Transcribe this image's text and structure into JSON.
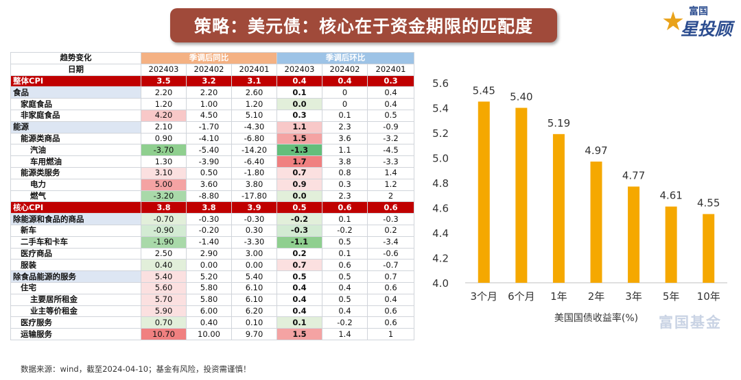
{
  "title": "策略：美元债：核心在于资金期限的匹配度",
  "brand": {
    "line1": "富国",
    "line2": "星投顾"
  },
  "watermark": "富国基金",
  "footer": "数据来源：wind，截至2024-04-10；基金有风险，投资需谨慎！",
  "colors": {
    "accent": "#f5a800",
    "banner": "#a04a3a",
    "red_row": "#c00000"
  },
  "table": {
    "header_trend": "趋势变化",
    "header_date": "日期",
    "group_yoy": "季调后同比",
    "group_mom": "季调后环比",
    "dates": [
      "202403",
      "202402",
      "202401",
      "202403",
      "202402",
      "202401"
    ],
    "rows": [
      {
        "label": "整体CPI",
        "level": 0,
        "kind": "red",
        "vals": [
          "3.5",
          "3.2",
          "3.1",
          "0.4",
          "0.4",
          "0.3"
        ],
        "colors": [
          "",
          "",
          "",
          "",
          "",
          ""
        ]
      },
      {
        "label": "食品",
        "level": 0,
        "kind": "cat",
        "vals": [
          "2.20",
          "2.20",
          "2.60",
          "0.1",
          "0",
          "0.4"
        ],
        "colors": [
          "",
          "",
          "",
          "",
          "",
          ""
        ]
      },
      {
        "label": "家庭食品",
        "level": 1,
        "kind": "",
        "vals": [
          "1.20",
          "1.00",
          "1.20",
          "0.0",
          "0",
          "0.4"
        ],
        "colors": [
          "",
          "",
          "",
          "#e2efda",
          "",
          ""
        ]
      },
      {
        "label": "非家庭食品",
        "level": 1,
        "kind": "",
        "vals": [
          "4.20",
          "4.50",
          "5.10",
          "0.3",
          "0.1",
          "0.5"
        ],
        "colors": [
          "#f8c8c8",
          "",
          "",
          "",
          "",
          ""
        ]
      },
      {
        "label": "能源",
        "level": 0,
        "kind": "cat",
        "vals": [
          "2.10",
          "-1.70",
          "-4.30",
          "1.1",
          "2.3",
          "-0.9"
        ],
        "colors": [
          "",
          "",
          "",
          "#f8c8c8",
          "",
          ""
        ]
      },
      {
        "label": "能源类商品",
        "level": 1,
        "kind": "",
        "vals": [
          "0.90",
          "-4.10",
          "-6.80",
          "1.5",
          "3.6",
          "-3.2"
        ],
        "colors": [
          "",
          "",
          "",
          "#f4a3a3",
          "",
          ""
        ]
      },
      {
        "label": "汽油",
        "level": 2,
        "kind": "",
        "vals": [
          "-3.70",
          "-5.40",
          "-14.20",
          "-1.3",
          "1.1",
          "-4.5"
        ],
        "colors": [
          "#8fcf8f",
          "",
          "",
          "#63be7b",
          "",
          ""
        ]
      },
      {
        "label": "车用燃油",
        "level": 2,
        "kind": "",
        "vals": [
          "1.30",
          "-3.90",
          "-6.40",
          "1.7",
          "3.8",
          "-3.3"
        ],
        "colors": [
          "",
          "",
          "",
          "#f08080",
          "",
          ""
        ]
      },
      {
        "label": "能源类服务",
        "level": 1,
        "kind": "",
        "vals": [
          "3.10",
          "0.50",
          "-1.80",
          "0.7",
          "0.8",
          "1.4"
        ],
        "colors": [
          "#fbe0e0",
          "",
          "",
          "#fbe0e0",
          "",
          ""
        ]
      },
      {
        "label": "电力",
        "level": 2,
        "kind": "",
        "vals": [
          "5.00",
          "3.60",
          "3.80",
          "0.9",
          "0.3",
          "1.2"
        ],
        "colors": [
          "#f4a3a3",
          "",
          "",
          "#fbe0e0",
          "",
          ""
        ]
      },
      {
        "label": "燃气",
        "level": 2,
        "kind": "",
        "vals": [
          "-3.20",
          "-8.80",
          "-17.80",
          "0.0",
          "2.3",
          "2"
        ],
        "colors": [
          "#a9d9a9",
          "",
          "",
          "#e2efda",
          "",
          ""
        ]
      },
      {
        "label": "核心CPI",
        "level": 0,
        "kind": "red",
        "vals": [
          "3.8",
          "3.8",
          "3.9",
          "0.5",
          "0.6",
          "0.6"
        ],
        "colors": [
          "",
          "",
          "",
          "",
          "",
          ""
        ]
      },
      {
        "label": "除能源和食品的商品",
        "level": 0,
        "kind": "cat",
        "vals": [
          "-0.70",
          "-0.30",
          "-0.30",
          "-0.2",
          "0.1",
          "-0.3"
        ],
        "colors": [
          "#e2efda",
          "",
          "",
          "#e2efda",
          "",
          ""
        ]
      },
      {
        "label": "新车",
        "level": 1,
        "kind": "",
        "vals": [
          "-0.90",
          "-0.20",
          "0.30",
          "-0.3",
          "-0.2",
          "0.2"
        ],
        "colors": [
          "#d3ebd3",
          "",
          "",
          "#d3ebd3",
          "",
          ""
        ]
      },
      {
        "label": "二手车和卡车",
        "level": 1,
        "kind": "",
        "vals": [
          "-1.90",
          "-1.40",
          "-3.30",
          "-1.1",
          "0.5",
          "-3.4"
        ],
        "colors": [
          "#a9d9a9",
          "",
          "",
          "#8fcf8f",
          "",
          ""
        ]
      },
      {
        "label": "医疗商品",
        "level": 1,
        "kind": "",
        "vals": [
          "2.50",
          "2.90",
          "3.00",
          "0.2",
          "0.1",
          "-0.6"
        ],
        "colors": [
          "",
          "",
          "",
          "",
          "",
          ""
        ]
      },
      {
        "label": "服装",
        "level": 1,
        "kind": "",
        "vals": [
          "0.40",
          "0.00",
          "0.00",
          "0.7",
          "0.6",
          "-0.7"
        ],
        "colors": [
          "#e2efda",
          "",
          "",
          "#fbe0e0",
          "",
          ""
        ]
      },
      {
        "label": "除食品能源的服务",
        "level": 0,
        "kind": "cat",
        "vals": [
          "5.40",
          "5.20",
          "5.40",
          "0.5",
          "0.5",
          "0.7"
        ],
        "colors": [
          "#fbe0e0",
          "",
          "",
          "",
          "",
          ""
        ]
      },
      {
        "label": "住宅",
        "level": 1,
        "kind": "",
        "vals": [
          "5.60",
          "5.80",
          "6.10",
          "0.4",
          "0.4",
          "0.6"
        ],
        "colors": [
          "#fbe0e0",
          "",
          "",
          "",
          "",
          ""
        ]
      },
      {
        "label": "主要居所租金",
        "level": 2,
        "kind": "",
        "vals": [
          "5.70",
          "5.80",
          "6.10",
          "0.4",
          "0.5",
          "0.4"
        ],
        "colors": [
          "#fbe0e0",
          "",
          "",
          "",
          "",
          ""
        ]
      },
      {
        "label": "业主等价租金",
        "level": 2,
        "kind": "",
        "vals": [
          "5.90",
          "6.00",
          "6.20",
          "0.4",
          "0.4",
          "0.6"
        ],
        "colors": [
          "#fbe0e0",
          "",
          "",
          "",
          "",
          ""
        ]
      },
      {
        "label": "医疗服务",
        "level": 1,
        "kind": "",
        "vals": [
          "0.70",
          "0.40",
          "0.10",
          "0.1",
          "-0.2",
          "0.6"
        ],
        "colors": [
          "#e2efda",
          "",
          "",
          "#e2efda",
          "",
          ""
        ]
      },
      {
        "label": "运输服务",
        "level": 1,
        "kind": "",
        "vals": [
          "10.70",
          "10.00",
          "9.70",
          "1.5",
          "1.4",
          "1"
        ],
        "colors": [
          "#f08080",
          "",
          "",
          "#f4a3a3",
          "",
          ""
        ]
      }
    ]
  },
  "chart_data": {
    "type": "bar",
    "categories": [
      "3个月",
      "6个月",
      "1年",
      "2年",
      "3年",
      "5年",
      "10年"
    ],
    "values": [
      5.45,
      5.4,
      5.19,
      4.97,
      4.77,
      4.61,
      4.55
    ],
    "value_labels": [
      "5.45",
      "5.40",
      "5.19",
      "4.97",
      "4.77",
      "4.61",
      "4.55"
    ],
    "xlabel": "美国国债收益率(%)",
    "ylim": [
      4.0,
      5.6
    ],
    "yticks": [
      "4.0",
      "4.2",
      "4.4",
      "4.6",
      "4.8",
      "5.0",
      "5.2",
      "5.4",
      "5.6"
    ],
    "grid": false
  }
}
